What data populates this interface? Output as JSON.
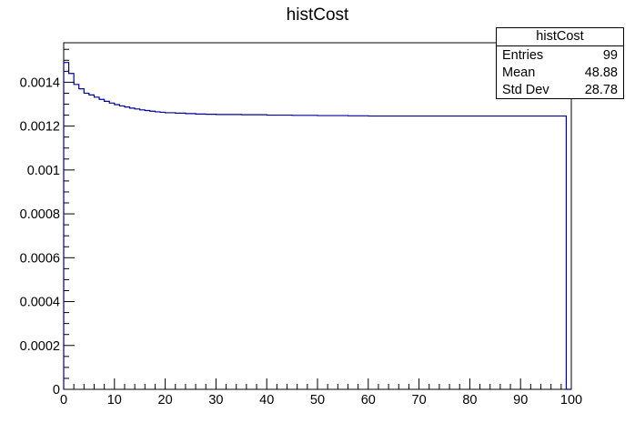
{
  "chart_data": {
    "type": "histogram",
    "title": "histCost",
    "xlim": [
      0,
      100
    ],
    "ylim": [
      0,
      0.00158
    ],
    "x_major_ticks": [
      0,
      10,
      20,
      30,
      40,
      50,
      60,
      70,
      80,
      90,
      100
    ],
    "y_major_ticks": [
      0,
      0.0002,
      0.0004,
      0.0006,
      0.0008,
      0.001,
      0.0012,
      0.0014
    ],
    "x_tick_labels": [
      "0",
      "10",
      "20",
      "30",
      "40",
      "50",
      "60",
      "70",
      "80",
      "90",
      "100"
    ],
    "y_tick_labels": [
      "0",
      "0.0002",
      "0.0004",
      "0.0006",
      "0.0008",
      "0.001",
      "0.0012",
      "0.0014"
    ],
    "bin_edges_x": [
      0,
      1,
      2,
      3,
      4,
      5,
      6,
      7,
      8,
      9,
      10,
      11,
      12,
      13,
      14,
      15,
      16,
      17,
      18,
      19,
      20,
      22,
      24,
      26,
      28,
      30,
      35,
      40,
      45,
      50,
      56,
      60,
      70,
      80,
      90,
      99,
      100
    ],
    "bin_values": [
      0.00149,
      0.00144,
      0.00139,
      0.00137,
      0.00135,
      0.001342,
      0.001332,
      0.001322,
      0.001313,
      0.001305,
      0.001298,
      0.001292,
      0.001287,
      0.001282,
      0.001278,
      0.001274,
      0.001271,
      0.001268,
      0.001265,
      0.001263,
      0.001261,
      0.001259,
      0.001257,
      0.001255,
      0.001254,
      0.001253,
      0.001252,
      0.00125,
      0.001249,
      0.001248,
      0.001247,
      0.001246,
      0.001246,
      0.001246,
      0.001246,
      0
    ],
    "line_color": "#000099",
    "stats_box": {
      "title": "histCost",
      "entries_label": "Entries",
      "entries_value": "99",
      "mean_label": "Mean",
      "mean_value": "48.88",
      "stddev_label": "Std Dev",
      "stddev_value": "28.78"
    }
  }
}
